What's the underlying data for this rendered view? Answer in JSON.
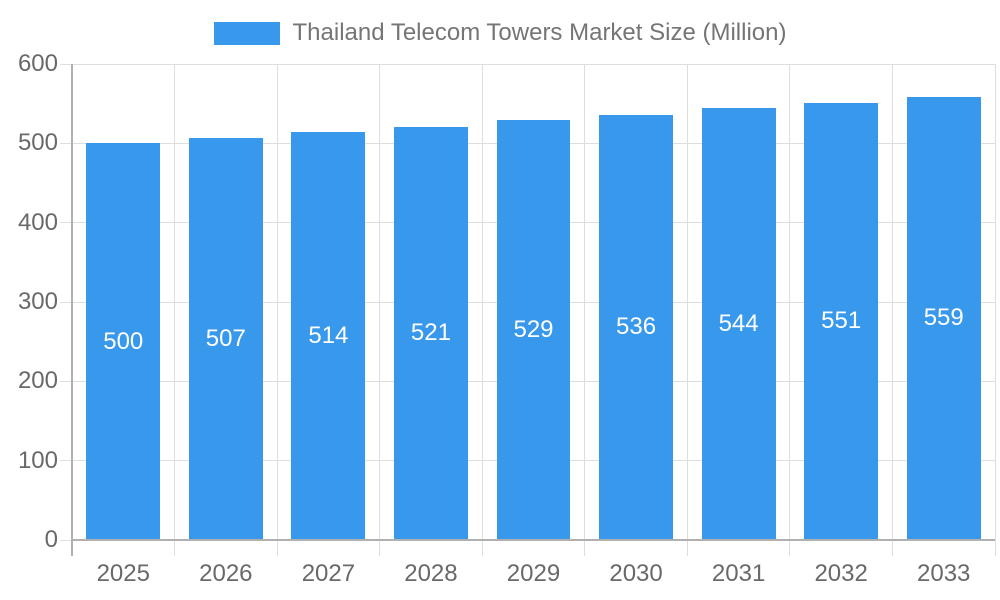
{
  "chart_data": {
    "type": "bar",
    "title": "Thailand Telecom Towers Market Size (Million)",
    "categories": [
      "2025",
      "2026",
      "2027",
      "2028",
      "2029",
      "2030",
      "2031",
      "2032",
      "2033"
    ],
    "values": [
      500,
      507,
      514,
      521,
      529,
      536,
      544,
      551,
      559
    ],
    "bar_labels": [
      "500",
      "507",
      "514",
      "521",
      "529",
      "536",
      "544",
      "551",
      "559"
    ],
    "xlabel": "",
    "ylabel": "",
    "ylim": [
      0,
      600
    ],
    "yticks": [
      0,
      100,
      200,
      300,
      400,
      500,
      600
    ],
    "grid": true,
    "legend_position": "top",
    "colors": {
      "bar": "#3898EC",
      "bar_label": "#FFFFFF",
      "tick_label": "#696969",
      "title": "#757575",
      "gridline": "#DEDEDE",
      "axis_line": "#B0B0B0"
    }
  }
}
